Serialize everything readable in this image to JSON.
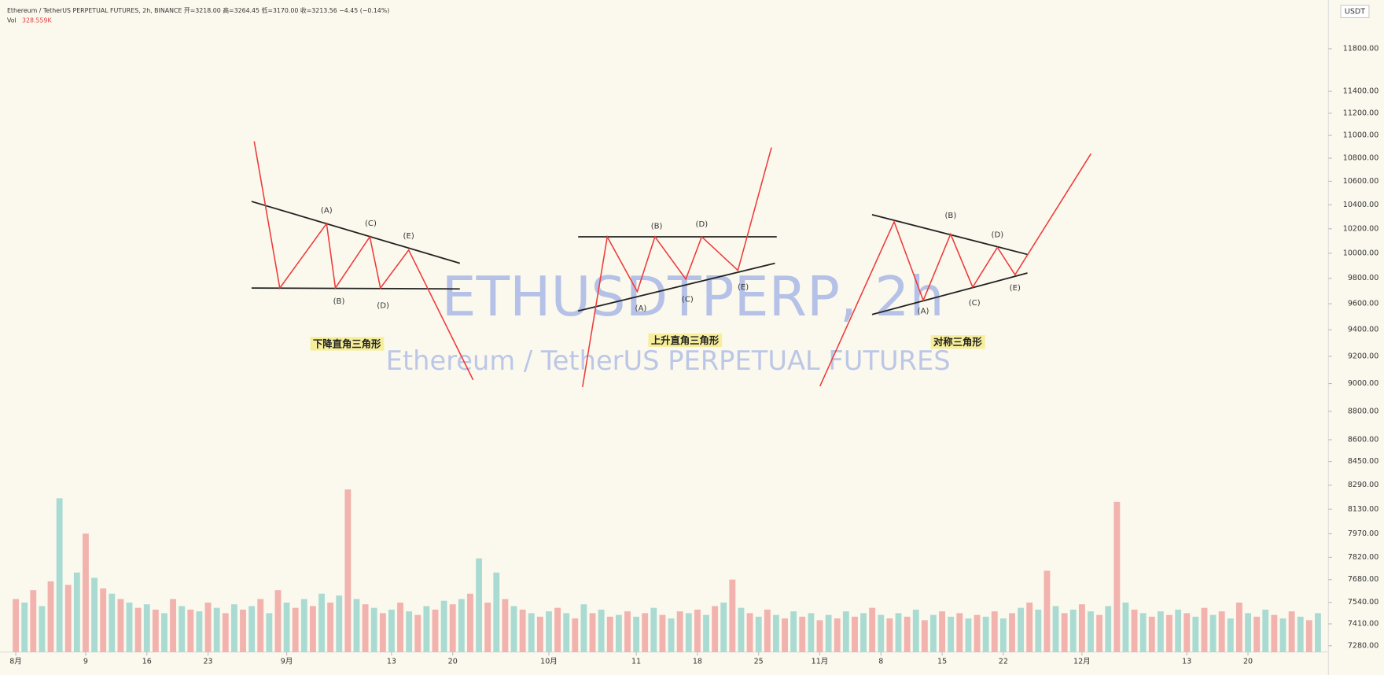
{
  "chart_data": {
    "type": "volume",
    "title": "Ethereum / TetherUS PERPETUAL FUTURES, 2h, BINANCE  开=3218.00 高=3264.45 低=3170.00 收=3213.56 −4.45 (−0.14%)",
    "volume_label": "Vol",
    "volume_value": "328.559K",
    "price_unit": "USDT",
    "watermark": "ETHUSDTPERP, 2h",
    "watermark_subtitle": "Ethereum / TetherUS PERPETUAL FUTURES",
    "log_scale": true,
    "ylim": [
      7243,
      12274
    ],
    "yticks": [
      {
        "value": 11800,
        "label": "11800.00"
      },
      {
        "value": 11400,
        "label": "11400.00"
      },
      {
        "value": 11200,
        "label": "11200.00"
      },
      {
        "value": 11000,
        "label": "11000.00"
      },
      {
        "value": 10800,
        "label": "10800.00"
      },
      {
        "value": 10600,
        "label": "10600.00"
      },
      {
        "value": 10400,
        "label": "10400.00"
      },
      {
        "value": 10200,
        "label": "10200.00"
      },
      {
        "value": 10000,
        "label": "10000.00"
      },
      {
        "value": 9800,
        "label": "9800.00"
      },
      {
        "value": 9600,
        "label": "9600.00"
      },
      {
        "value": 9400,
        "label": "9400.00"
      },
      {
        "value": 9200,
        "label": "9200.00"
      },
      {
        "value": 9000,
        "label": "9000.00"
      },
      {
        "value": 8800,
        "label": "8800.00"
      },
      {
        "value": 8600,
        "label": "8600.00"
      },
      {
        "value": 8450,
        "label": "8450.00"
      },
      {
        "value": 8290,
        "label": "8290.00"
      },
      {
        "value": 8130,
        "label": "8130.00"
      },
      {
        "value": 7970,
        "label": "7970.00"
      },
      {
        "value": 7820,
        "label": "7820.00"
      },
      {
        "value": 7680,
        "label": "7680.00"
      },
      {
        "value": 7540,
        "label": "7540.00"
      },
      {
        "value": 7410,
        "label": "7410.00"
      },
      {
        "value": 7280,
        "label": "7280.00"
      }
    ],
    "xlim": [
      -1.3,
      150.2
    ],
    "xticks": [
      {
        "value": 0,
        "label": "8月"
      },
      {
        "value": 8,
        "label": "9"
      },
      {
        "value": 15,
        "label": "16"
      },
      {
        "value": 22,
        "label": "23"
      },
      {
        "value": 31,
        "label": "9月"
      },
      {
        "value": 43,
        "label": "13"
      },
      {
        "value": 50,
        "label": "20"
      },
      {
        "value": 61,
        "label": "10月"
      },
      {
        "value": 71,
        "label": "11"
      },
      {
        "value": 78,
        "label": "18"
      },
      {
        "value": 85,
        "label": "25"
      },
      {
        "value": 92,
        "label": "11月"
      },
      {
        "value": 99,
        "label": "8"
      },
      {
        "value": 106,
        "label": "15"
      },
      {
        "value": 113,
        "label": "22"
      },
      {
        "value": 122,
        "label": "12月"
      },
      {
        "value": 134,
        "label": "13"
      },
      {
        "value": 141,
        "label": "20"
      }
    ],
    "volume_ylim": [
      0,
      100
    ],
    "volume_colors": [
      "#ef9a97",
      "#8fd0c8"
    ],
    "values": [
      30,
      28,
      35,
      26,
      40,
      87,
      38,
      45,
      67,
      42,
      36,
      33,
      30,
      28,
      25,
      27,
      24,
      22,
      30,
      26,
      24,
      23,
      28,
      25,
      22,
      27,
      24,
      26,
      30,
      22,
      35,
      28,
      25,
      30,
      26,
      33,
      28,
      32,
      92,
      30,
      27,
      25,
      22,
      24,
      28,
      23,
      21,
      26,
      24,
      29,
      27,
      30,
      33,
      53,
      28,
      45,
      30,
      26,
      24,
      22,
      20,
      23,
      25,
      22,
      19,
      27,
      22,
      24,
      20,
      21,
      23,
      20,
      22,
      25,
      21,
      19,
      23,
      22,
      24,
      21,
      26,
      28,
      41,
      25,
      22,
      20,
      24,
      21,
      19,
      23,
      20,
      22,
      18,
      21,
      19,
      23,
      20,
      22,
      25,
      21,
      19,
      22,
      20,
      24,
      18,
      21,
      23,
      20,
      22,
      19,
      21,
      20,
      23,
      19,
      22,
      25,
      28,
      24,
      46,
      26,
      22,
      24,
      27,
      23,
      21,
      26,
      85,
      28,
      24,
      22,
      20,
      23,
      21,
      24,
      22,
      20,
      25,
      21,
      23,
      19,
      28,
      22,
      20,
      24,
      21,
      19,
      23,
      20,
      18,
      22
    ],
    "annotations": [
      {
        "title": "下降直角三角形",
        "labels": [
          "(A)",
          "(C)",
          "(E)",
          "(B)",
          "(D)"
        ]
      },
      {
        "title": "上升直角三角形",
        "labels": [
          "(B)",
          "(D)",
          "(A)",
          "(C)",
          "(E)"
        ]
      },
      {
        "title": "对称三角形",
        "labels": [
          "(B)",
          "(D)",
          "(A)",
          "(C)",
          "(E)"
        ]
      }
    ]
  }
}
